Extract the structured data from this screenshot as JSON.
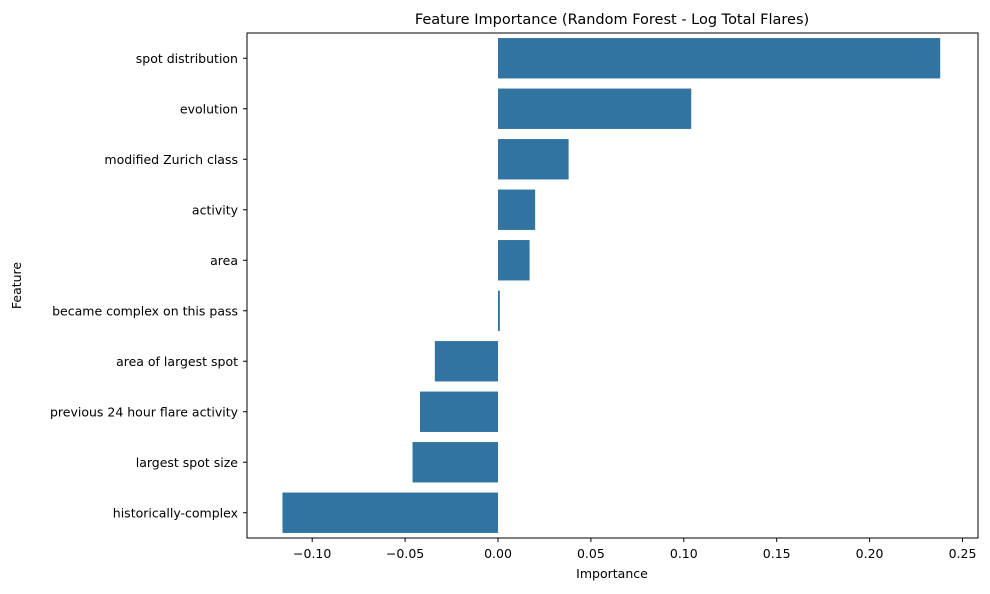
{
  "chart_data": {
    "type": "bar",
    "orientation": "horizontal",
    "title": "Feature Importance (Random Forest - Log Total Flares)",
    "xlabel": "Importance",
    "ylabel": "Feature",
    "xlim": [
      -0.13,
      0.25
    ],
    "xticks": [
      -0.1,
      -0.05,
      0.0,
      0.05,
      0.1,
      0.15,
      0.2,
      0.25
    ],
    "xtick_labels": [
      "−0.10",
      "−0.05",
      "0.00",
      "0.05",
      "0.10",
      "0.15",
      "0.20",
      "0.25"
    ],
    "categories": [
      "spot distribution",
      "evolution",
      "modified Zurich class",
      "activity",
      "area",
      "became complex on this pass",
      "area of largest spot",
      "previous 24 hour flare activity",
      "largest spot size",
      "historically-complex"
    ],
    "values": [
      0.238,
      0.104,
      0.038,
      0.02,
      0.017,
      0.001,
      -0.034,
      -0.042,
      -0.046,
      -0.116
    ],
    "bar_color": "#3274a1",
    "grid": false,
    "legend": "none"
  }
}
